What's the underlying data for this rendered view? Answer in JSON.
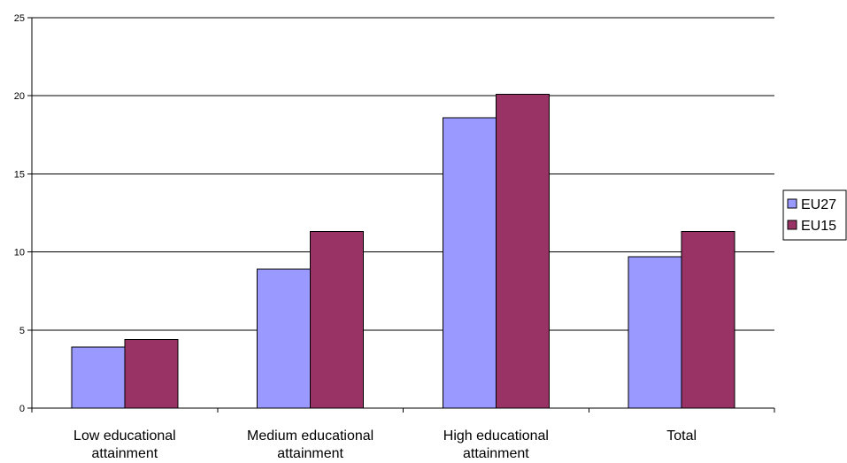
{
  "chart_data": {
    "type": "bar",
    "categories": [
      [
        "Low educational",
        "attainment"
      ],
      [
        "Medium educational",
        "attainment"
      ],
      [
        "High educational",
        "attainment"
      ],
      [
        "Total"
      ]
    ],
    "series": [
      {
        "name": "EU27",
        "values": [
          3.9,
          8.9,
          18.6,
          9.7
        ],
        "color": "#9999ff"
      },
      {
        "name": "EU15",
        "values": [
          4.4,
          11.3,
          20.1,
          11.3
        ],
        "color": "#993366"
      }
    ],
    "yticks": [
      0,
      5,
      10,
      15,
      20,
      25
    ],
    "ylim": [
      0,
      25
    ],
    "grid": true,
    "legend_position": "right",
    "title": "",
    "xlabel": "",
    "ylabel": ""
  }
}
